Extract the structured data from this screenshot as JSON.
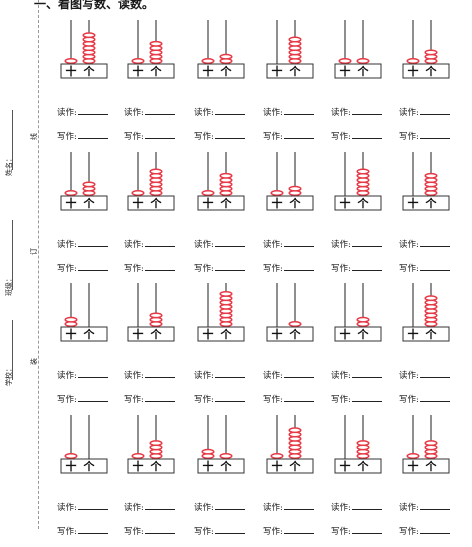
{
  "title": "一、看图写数、读数。",
  "margin": {
    "name_label": "姓名：",
    "class_label": "班级：",
    "school_label": "学校：",
    "cut_marks": [
      "线",
      "订",
      "装"
    ]
  },
  "abacus_labels": {
    "tens": "十",
    "ones": "个"
  },
  "answer_labels": {
    "read": "读作:",
    "write": "写作:"
  },
  "colors": {
    "bead": "#e63946",
    "rod": "#444444",
    "frame": "#333333"
  },
  "abacus_items": [
    {
      "tens": 1,
      "ones": 7
    },
    {
      "tens": 1,
      "ones": 5
    },
    {
      "tens": 1,
      "ones": 2
    },
    {
      "tens": 0,
      "ones": 6
    },
    {
      "tens": 1,
      "ones": 1
    },
    {
      "tens": 1,
      "ones": 3
    },
    {
      "tens": 1,
      "ones": 3
    },
    {
      "tens": 1,
      "ones": 6
    },
    {
      "tens": 1,
      "ones": 5
    },
    {
      "tens": 1,
      "ones": 2
    },
    {
      "tens": 0,
      "ones": 6
    },
    {
      "tens": 0,
      "ones": 5
    },
    {
      "tens": 2,
      "ones": 0
    },
    {
      "tens": 0,
      "ones": 3
    },
    {
      "tens": 0,
      "ones": 8
    },
    {
      "tens": 0,
      "ones": 1
    },
    {
      "tens": 0,
      "ones": 2
    },
    {
      "tens": 0,
      "ones": 7
    },
    {
      "tens": 1,
      "ones": 0
    },
    {
      "tens": 1,
      "ones": 4
    },
    {
      "tens": 2,
      "ones": 1
    },
    {
      "tens": 1,
      "ones": 7
    },
    {
      "tens": 0,
      "ones": 4
    },
    {
      "tens": 1,
      "ones": 4
    }
  ]
}
